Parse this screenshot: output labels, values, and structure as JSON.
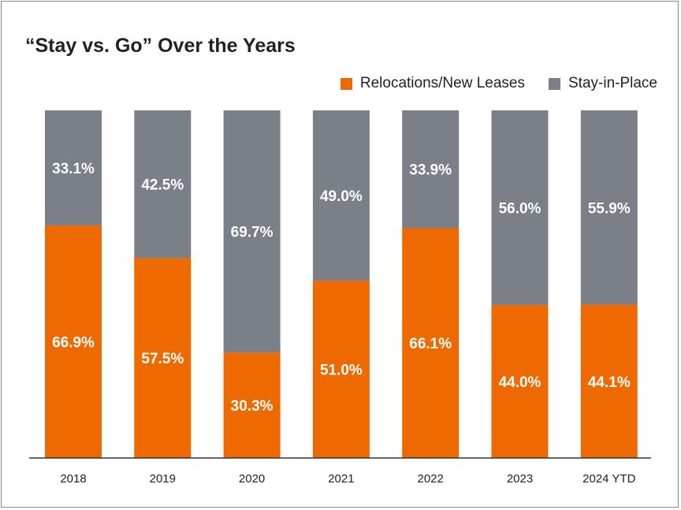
{
  "chart_data": {
    "type": "bar",
    "stacked": true,
    "title": "“Stay vs. Go” Over the Years",
    "categories": [
      "2018",
      "2019",
      "2020",
      "2021",
      "2022",
      "2023",
      "2024 YTD"
    ],
    "series": [
      {
        "name": "Relocations/New Leases",
        "color": "#ee6a00",
        "values": [
          66.9,
          57.5,
          30.3,
          51.0,
          66.1,
          44.0,
          44.1
        ],
        "labels": [
          "66.9%",
          "57.5%",
          "30.3%",
          "51.0%",
          "66.1%",
          "44.0%",
          "44.1%"
        ]
      },
      {
        "name": "Stay-in-Place",
        "color": "#7a7f88",
        "values": [
          33.1,
          42.5,
          69.7,
          49.0,
          33.9,
          56.0,
          55.9
        ],
        "labels": [
          "33.1%",
          "42.5%",
          "69.7%",
          "49.0%",
          "33.9%",
          "56.0%",
          "55.9%"
        ]
      }
    ],
    "ylim": [
      0,
      100
    ],
    "grid": false,
    "legend_position": "top-right"
  }
}
